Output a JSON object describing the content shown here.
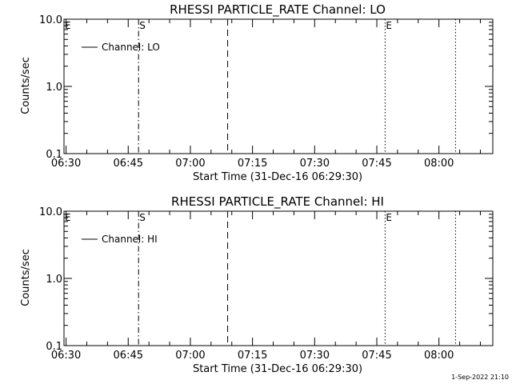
{
  "footer": {
    "timestamp": "1-Sep-2022 21:10"
  },
  "chart_data": [
    {
      "type": "line",
      "title": "RHESSI PARTICLE_RATE Channel: LO",
      "xlabel": "Start Time (31-Dec-16 06:29:30)",
      "ylabel": "Counts/sec",
      "yscale": "log",
      "ylim": [
        0.1,
        10.0
      ],
      "yticks": [
        "0.1",
        "1.0",
        "10.0"
      ],
      "xlim": [
        "06:29:30",
        "08:13:00"
      ],
      "xticks": [
        "06:30",
        "06:45",
        "07:00",
        "07:15",
        "07:30",
        "07:45",
        "08:00"
      ],
      "grid": false,
      "legend": {
        "position": "top-left",
        "entries": [
          "Channel: LO"
        ]
      },
      "series": [
        {
          "name": "Channel: LO",
          "x": [],
          "y": []
        }
      ],
      "markers": [
        {
          "time": "06:29:30",
          "style": "none",
          "label": "E"
        },
        {
          "time": "06:47:30",
          "style": "dash-dot",
          "label": "S"
        },
        {
          "time": "07:09:00",
          "style": "dashed",
          "label": ""
        },
        {
          "time": "07:47:00",
          "style": "dotted",
          "label": "E"
        },
        {
          "time": "08:04:00",
          "style": "dotted",
          "label": ""
        }
      ]
    },
    {
      "type": "line",
      "title": "RHESSI PARTICLE_RATE Channel: HI",
      "xlabel": "Start Time (31-Dec-16 06:29:30)",
      "ylabel": "Counts/sec",
      "yscale": "log",
      "ylim": [
        0.1,
        10.0
      ],
      "yticks": [
        "0.1",
        "1.0",
        "10.0"
      ],
      "xlim": [
        "06:29:30",
        "08:13:00"
      ],
      "xticks": [
        "06:30",
        "06:45",
        "07:00",
        "07:15",
        "07:30",
        "07:45",
        "08:00"
      ],
      "grid": false,
      "legend": {
        "position": "top-left",
        "entries": [
          "Channel: HI"
        ]
      },
      "series": [
        {
          "name": "Channel: HI",
          "x": [],
          "y": []
        }
      ],
      "markers": [
        {
          "time": "06:29:30",
          "style": "none",
          "label": "E"
        },
        {
          "time": "06:47:30",
          "style": "dash-dot",
          "label": "S"
        },
        {
          "time": "07:09:00",
          "style": "dashed",
          "label": ""
        },
        {
          "time": "07:47:00",
          "style": "dotted",
          "label": "E"
        },
        {
          "time": "08:04:00",
          "style": "dotted",
          "label": ""
        }
      ]
    }
  ]
}
